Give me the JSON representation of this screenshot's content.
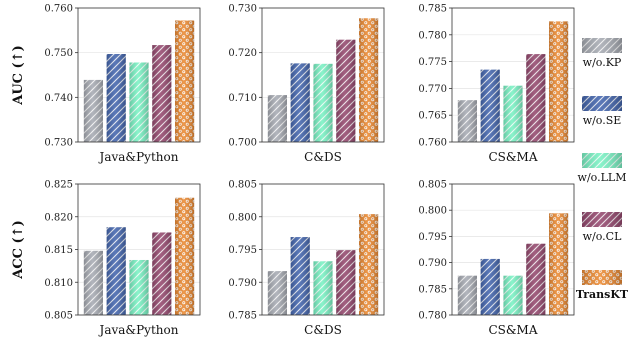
{
  "legend": [
    {
      "name": "w/o.KP",
      "color": "#a7abb3",
      "pattern": "diag"
    },
    {
      "name": "w/o.SE",
      "color": "#4466ae",
      "pattern": "diag"
    },
    {
      "name": "w/o.LLM",
      "color": "#7af2c4",
      "pattern": "diag"
    },
    {
      "name": "w/o.CL",
      "color": "#95496f",
      "pattern": "diag"
    },
    {
      "name": "TransKT",
      "color": "#eb8a33",
      "pattern": "dots"
    }
  ],
  "chart_data": [
    {
      "type": "bar",
      "row": "AUC",
      "ylabel": "AUC (↑)",
      "xlabel": "Java&Python",
      "categories": [
        "w/o.KP",
        "w/o.SE",
        "w/o.LLM",
        "w/o.CL",
        "TransKT"
      ],
      "values": [
        0.7439,
        0.7497,
        0.7478,
        0.7517,
        0.7572
      ],
      "ylim": [
        0.73,
        0.76
      ],
      "yticks": [
        "0.730",
        "0.740",
        "0.750",
        "0.760"
      ],
      "grid": true
    },
    {
      "type": "bar",
      "row": "AUC",
      "xlabel": "C&DS",
      "categories": [
        "w/o.KP",
        "w/o.SE",
        "w/o.LLM",
        "w/o.CL",
        "TransKT"
      ],
      "values": [
        0.7105,
        0.7176,
        0.7175,
        0.7229,
        0.7277
      ],
      "ylim": [
        0.7,
        0.73
      ],
      "yticks": [
        "0.700",
        "0.710",
        "0.720",
        "0.730"
      ],
      "grid": true
    },
    {
      "type": "bar",
      "row": "AUC",
      "xlabel": "CS&MA",
      "categories": [
        "w/o.KP",
        "w/o.SE",
        "w/o.LLM",
        "w/o.CL",
        "TransKT"
      ],
      "values": [
        0.7678,
        0.7735,
        0.7705,
        0.7764,
        0.7825
      ],
      "ylim": [
        0.76,
        0.785
      ],
      "yticks": [
        "0.760",
        "0.765",
        "0.770",
        "0.775",
        "0.780",
        "0.785"
      ],
      "grid": true
    },
    {
      "type": "bar",
      "row": "ACC",
      "ylabel": "ACC (↑)",
      "xlabel": "Java&Python",
      "categories": [
        "w/o.KP",
        "w/o.SE",
        "w/o.LLM",
        "w/o.CL",
        "TransKT"
      ],
      "values": [
        0.8148,
        0.8184,
        0.8134,
        0.8176,
        0.8229
      ],
      "ylim": [
        0.805,
        0.825
      ],
      "yticks": [
        "0.805",
        "0.810",
        "0.815",
        "0.820",
        "0.825"
      ],
      "grid": true
    },
    {
      "type": "bar",
      "row": "ACC",
      "xlabel": "C&DS",
      "categories": [
        "w/o.KP",
        "w/o.SE",
        "w/o.LLM",
        "w/o.CL",
        "TransKT"
      ],
      "values": [
        0.7917,
        0.7969,
        0.7932,
        0.7949,
        0.8004
      ],
      "ylim": [
        0.785,
        0.805
      ],
      "yticks": [
        "0.785",
        "0.790",
        "0.795",
        "0.800",
        "0.805"
      ],
      "grid": true
    },
    {
      "type": "bar",
      "row": "ACC",
      "xlabel": "CS&MA",
      "categories": [
        "w/o.KP",
        "w/o.SE",
        "w/o.LLM",
        "w/o.CL",
        "TransKT"
      ],
      "values": [
        0.7875,
        0.7907,
        0.7875,
        0.7936,
        0.7994
      ],
      "ylim": [
        0.78,
        0.805
      ],
      "yticks": [
        "0.780",
        "0.785",
        "0.790",
        "0.795",
        "0.800",
        "0.805"
      ],
      "grid": true
    }
  ]
}
